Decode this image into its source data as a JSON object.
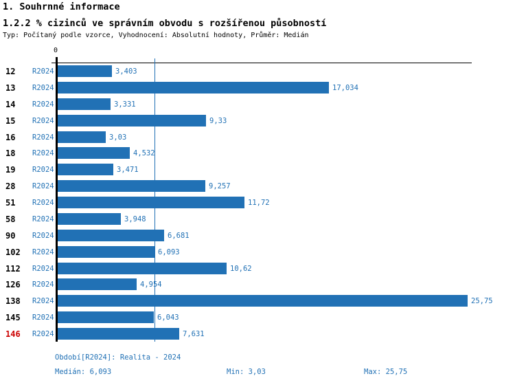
{
  "header": {
    "title1": "1. Souhrnné informace",
    "title2": "1.2.2 % cizinců ve správním obvodu s rozšířenou působností",
    "subtitle": "Typ: Počítaný podle vzorce, Vyhodnocení: Absolutní hodnoty, Průměr: Medián"
  },
  "chart_data": {
    "type": "bar",
    "orientation": "horizontal",
    "title": "1.2.2 % cizinců ve správním obvodu s rozšířenou působností",
    "series_name": "R2024",
    "categories": [
      "12",
      "13",
      "14",
      "15",
      "16",
      "18",
      "19",
      "28",
      "51",
      "58",
      "90",
      "102",
      "112",
      "126",
      "138",
      "145",
      "146"
    ],
    "values": [
      3.403,
      17.034,
      3.331,
      9.33,
      3.03,
      4.532,
      3.471,
      9.257,
      11.72,
      3.948,
      6.681,
      6.093,
      10.62,
      4.954,
      25.75,
      6.043,
      7.631
    ],
    "value_labels": [
      "3,403",
      "17,034",
      "3,331",
      "9,33",
      "3,03",
      "4,532",
      "3,471",
      "9,257",
      "11,72",
      "3,948",
      "6,681",
      "6,093",
      "10,62",
      "4,954",
      "25,75",
      "6,043",
      "7,631"
    ],
    "highlighted_category": "146",
    "xlim": [
      0,
      26
    ],
    "zero_tick_label": "0",
    "median_line_value": 6.093,
    "grid": false,
    "legend": false,
    "bar_color": "#2171b5",
    "text_color": "#2171b5",
    "highlight_color": "#cc0000"
  },
  "footer": {
    "period": "Období[R2024]: Realita - 2024",
    "median": "Medián: 6,093",
    "min": "Min: 3,03",
    "max": "Max: 25,75"
  }
}
